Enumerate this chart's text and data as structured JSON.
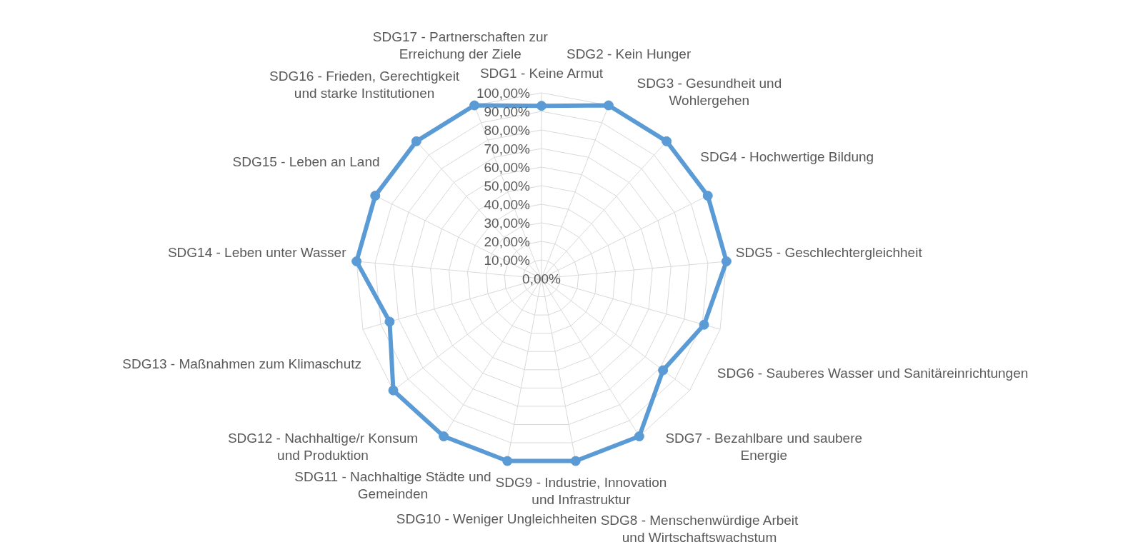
{
  "chart_data": {
    "type": "radar",
    "categories": [
      "SDG1 - Keine Armut",
      "SDG2 - Kein Hunger",
      "SDG3 - Gesundheit und Wohlergehen",
      "SDG4 - Hochwertige Bildung",
      "SDG5 - Geschlechtergleichheit",
      "SDG6 - Sauberes Wasser und Sanitäreinrichtungen",
      "SDG7 - Bezahlbare und saubere Energie",
      "SDG8 - Menschenwürdige Arbeit und Wirtschaftswachstum",
      "SDG9 - Industrie, Innovation und Infrastruktur",
      "SDG10 - Weniger Ungleichheiten",
      "SDG11 - Nachhaltige Städte und Gemeinden",
      "SDG12 - Nachhaltige/r Konsum und Produktion",
      "SDG13 - Maßnahmen zum Klimaschutz",
      "SDG14 - Leben unter Wasser",
      "SDG15 - Leben an Land",
      "SDG16 - Frieden, Gerechtigkeit und starke Institutionen",
      "SDG17 - Partnerschaften zur Erreichung der Ziele"
    ],
    "series": [
      {
        "color": "#5b9bd5",
        "values": [
          93,
          100,
          100,
          100,
          100,
          91,
          82,
          100,
          100,
          100,
          100,
          100,
          85,
          100,
          100,
          100,
          100
        ]
      }
    ],
    "ylim": [
      0,
      100
    ],
    "yticks": [
      {
        "value": 0,
        "label": "0,00%"
      },
      {
        "value": 10,
        "label": "10,00%"
      },
      {
        "value": 20,
        "label": "20,00%"
      },
      {
        "value": 30,
        "label": "30,00%"
      },
      {
        "value": 40,
        "label": "40,00%"
      },
      {
        "value": 50,
        "label": "50,00%"
      },
      {
        "value": 60,
        "label": "60,00%"
      },
      {
        "value": 70,
        "label": "70,00%"
      },
      {
        "value": 80,
        "label": "80,00%"
      },
      {
        "value": 90,
        "label": "90,00%"
      },
      {
        "value": 100,
        "label": "100,00%"
      }
    ],
    "grid": true,
    "marker": "circle"
  }
}
